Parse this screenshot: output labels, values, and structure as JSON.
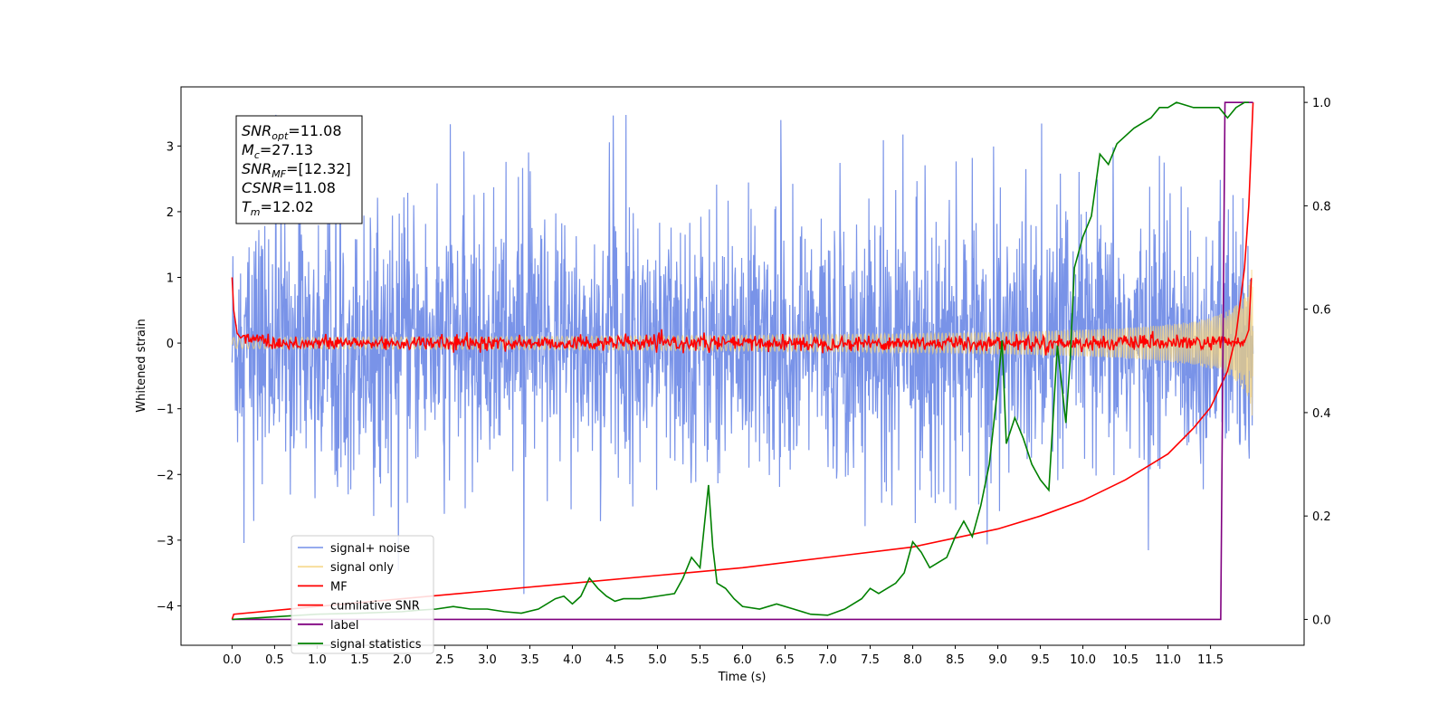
{
  "chart_data": {
    "type": "line",
    "xlabel": "Time (s)",
    "ylabel_left": "Whitened strain",
    "ylabel_right": "",
    "xlim": [
      -0.6,
      12.6
    ],
    "ylim_left": [
      -4.6,
      3.9
    ],
    "ylim_right": [
      -0.05,
      1.03
    ],
    "x_ticks": [
      "0.0",
      "0.5",
      "1.0",
      "1.5",
      "2.0",
      "2.5",
      "3.0",
      "3.5",
      "4.0",
      "4.5",
      "5.0",
      "5.5",
      "6.0",
      "6.5",
      "7.0",
      "7.5",
      "8.0",
      "8.5",
      "9.0",
      "9.5",
      "10.0",
      "10.5",
      "11.0",
      "11.5"
    ],
    "y_ticks_left": [
      "3",
      "2",
      "1",
      "0",
      "−1",
      "−2",
      "−3",
      "−4"
    ],
    "y_ticks_right": [
      "1.0",
      "0.8",
      "0.6",
      "0.4",
      "0.2",
      "0.0"
    ],
    "grid": false,
    "legend_position": "lower-left",
    "annotation": {
      "lines": [
        {
          "sym": "SNR",
          "sub": "opt",
          "val": "=11.08"
        },
        {
          "sym": "M",
          "sub": "c",
          "val": "=27.13"
        },
        {
          "sym": "SNR",
          "sub": "MF",
          "val": "=[12.32]"
        },
        {
          "sym": "CSNR",
          "sub": "",
          "val": "=11.08"
        },
        {
          "sym": "T",
          "sub": "m",
          "val": "=12.02"
        }
      ]
    },
    "series": [
      {
        "name": "signal+ noise",
        "color": "#6a87e6",
        "axis": "left",
        "kind": "noise",
        "x_range": [
          0.0,
          12.0
        ],
        "std": 1.0,
        "spike_max": 3.6,
        "spike_min": -4.2
      },
      {
        "name": "signal only",
        "color": "#f5d37a",
        "axis": "left",
        "kind": "chirp",
        "x_range": [
          0.0,
          12.0
        ],
        "amp_end": 1.0
      },
      {
        "name": "MF",
        "color": "#ff0000",
        "axis": "left",
        "kind": "mf",
        "x": [
          0.0,
          0.02,
          0.06,
          0.1,
          0.3,
          1.0,
          11.9,
          11.98
        ],
        "y": [
          1.0,
          0.5,
          0.15,
          0.08,
          0.05,
          0.0,
          0.02,
          0.99
        ]
      },
      {
        "name": "cumilative SNR",
        "color": "#ff0000",
        "axis": "right",
        "x": [
          0.0,
          0.02,
          1.0,
          2.0,
          3.0,
          4.0,
          5.0,
          6.0,
          7.0,
          8.0,
          9.0,
          9.5,
          10.0,
          10.5,
          11.0,
          11.3,
          11.5,
          11.7,
          11.8,
          11.9,
          11.95,
          12.0
        ],
        "y": [
          0.0,
          0.01,
          0.025,
          0.04,
          0.055,
          0.07,
          0.085,
          0.1,
          0.12,
          0.14,
          0.175,
          0.2,
          0.23,
          0.27,
          0.32,
          0.37,
          0.41,
          0.48,
          0.55,
          0.68,
          0.8,
          1.0
        ]
      },
      {
        "name": "label",
        "color": "#800080",
        "axis": "right",
        "x": [
          0.0,
          11.62,
          11.67,
          12.0
        ],
        "y": [
          0.0,
          0.0,
          1.0,
          1.0
        ]
      },
      {
        "name": "signal statistics",
        "color": "#008000",
        "axis": "right",
        "x": [
          0.0,
          0.5,
          1.0,
          1.5,
          2.0,
          2.2,
          2.4,
          2.6,
          2.8,
          3.0,
          3.2,
          3.4,
          3.6,
          3.8,
          3.9,
          4.0,
          4.1,
          4.2,
          4.3,
          4.4,
          4.5,
          4.6,
          4.8,
          5.0,
          5.2,
          5.3,
          5.4,
          5.5,
          5.55,
          5.6,
          5.65,
          5.7,
          5.8,
          5.9,
          6.0,
          6.2,
          6.4,
          6.6,
          6.8,
          7.0,
          7.2,
          7.4,
          7.5,
          7.6,
          7.8,
          7.9,
          8.0,
          8.1,
          8.2,
          8.3,
          8.4,
          8.5,
          8.6,
          8.7,
          8.8,
          8.9,
          9.0,
          9.05,
          9.1,
          9.2,
          9.3,
          9.4,
          9.5,
          9.6,
          9.7,
          9.8,
          9.85,
          9.9,
          10.0,
          10.1,
          10.2,
          10.3,
          10.4,
          10.6,
          10.8,
          10.9,
          11.0,
          11.1,
          11.3,
          11.5,
          11.6,
          11.7,
          11.8,
          11.9,
          11.95
        ],
        "y": [
          0.0,
          0.005,
          0.01,
          0.012,
          0.015,
          0.018,
          0.02,
          0.025,
          0.02,
          0.02,
          0.015,
          0.012,
          0.02,
          0.04,
          0.045,
          0.03,
          0.045,
          0.08,
          0.06,
          0.045,
          0.035,
          0.04,
          0.04,
          0.045,
          0.05,
          0.08,
          0.12,
          0.1,
          0.18,
          0.26,
          0.14,
          0.07,
          0.06,
          0.04,
          0.025,
          0.02,
          0.03,
          0.02,
          0.01,
          0.008,
          0.02,
          0.04,
          0.06,
          0.05,
          0.07,
          0.09,
          0.15,
          0.13,
          0.1,
          0.11,
          0.12,
          0.16,
          0.19,
          0.16,
          0.22,
          0.3,
          0.45,
          0.54,
          0.34,
          0.39,
          0.35,
          0.3,
          0.27,
          0.25,
          0.53,
          0.38,
          0.5,
          0.68,
          0.74,
          0.78,
          0.9,
          0.88,
          0.92,
          0.95,
          0.97,
          0.99,
          0.99,
          1.0,
          0.99,
          0.99,
          0.99,
          0.97,
          0.99,
          1.0,
          1.0
        ]
      }
    ]
  }
}
